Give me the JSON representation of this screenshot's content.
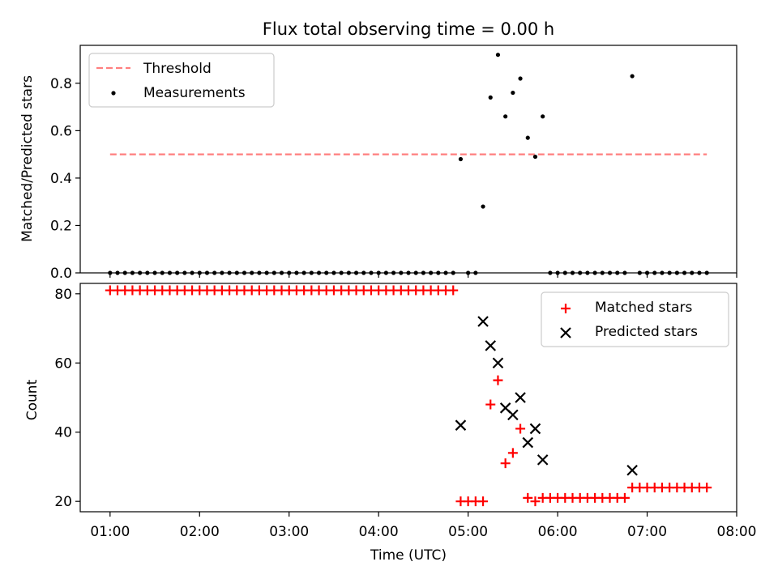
{
  "figure": {
    "title": "Flux total observing time = 0.00 h"
  },
  "chart_data": [
    {
      "type": "scatter",
      "title": "Flux total observing time = 0.00 h",
      "ylabel": "Matched/Predicted stars",
      "xlabel": "",
      "xlim": [
        "00:40",
        "08:00"
      ],
      "ylim": [
        0,
        0.96
      ],
      "yticks": [
        0.0,
        0.2,
        0.4,
        0.6,
        0.8
      ],
      "ytick_labels": [
        "0.0",
        "0.2",
        "0.4",
        "0.6",
        "0.8"
      ],
      "legend_position": "top-left",
      "grid": false,
      "threshold": {
        "name": "Threshold",
        "style": "dashed",
        "color": "#ff7f7f",
        "value": 0.5,
        "x_start": "01:00",
        "x_end": "07:40"
      },
      "series": [
        {
          "name": "Measurements",
          "marker": "dot",
          "color": "#000000",
          "x": [
            "01:00",
            "01:05",
            "01:10",
            "01:15",
            "01:20",
            "01:25",
            "01:30",
            "01:35",
            "01:40",
            "01:45",
            "01:50",
            "01:55",
            "02:00",
            "02:05",
            "02:10",
            "02:15",
            "02:20",
            "02:25",
            "02:30",
            "02:35",
            "02:40",
            "02:45",
            "02:50",
            "02:55",
            "03:00",
            "03:05",
            "03:10",
            "03:15",
            "03:20",
            "03:25",
            "03:30",
            "03:35",
            "03:40",
            "03:45",
            "03:50",
            "03:55",
            "04:00",
            "04:05",
            "04:10",
            "04:15",
            "04:20",
            "04:25",
            "04:30",
            "04:35",
            "04:40",
            "04:45",
            "04:50",
            "04:55",
            "05:00",
            "05:05",
            "05:10",
            "05:15",
            "05:20",
            "05:25",
            "05:30",
            "05:35",
            "05:40",
            "05:45",
            "05:50",
            "05:55",
            "06:00",
            "06:05",
            "06:10",
            "06:15",
            "06:20",
            "06:25",
            "06:30",
            "06:35",
            "06:40",
            "06:45",
            "06:50",
            "06:55",
            "07:00",
            "07:05",
            "07:10",
            "07:15",
            "07:20",
            "07:25",
            "07:30",
            "07:35",
            "07:40"
          ],
          "y": [
            0,
            0,
            0,
            0,
            0,
            0,
            0,
            0,
            0,
            0,
            0,
            0,
            0,
            0,
            0,
            0,
            0,
            0,
            0,
            0,
            0,
            0,
            0,
            0,
            0,
            0,
            0,
            0,
            0,
            0,
            0,
            0,
            0,
            0,
            0,
            0,
            0,
            0,
            0,
            0,
            0,
            0,
            0,
            0,
            0,
            0,
            0,
            0.48,
            0,
            0,
            0.28,
            0.74,
            0.92,
            0.66,
            0.76,
            0.82,
            0.57,
            0.49,
            0.66,
            0,
            0,
            0,
            0,
            0,
            0,
            0,
            0,
            0,
            0,
            0,
            0.83,
            0,
            0,
            0,
            0,
            0,
            0,
            0,
            0,
            0,
            0
          ]
        }
      ],
      "xticks": [
        "01:00",
        "02:00",
        "03:00",
        "04:00",
        "05:00",
        "06:00",
        "07:00",
        "08:00"
      ]
    },
    {
      "type": "scatter",
      "title": "",
      "ylabel": "Count",
      "xlabel": "Time (UTC)",
      "xlim": [
        "00:40",
        "08:00"
      ],
      "ylim": [
        17,
        83
      ],
      "yticks": [
        20,
        40,
        60,
        80
      ],
      "ytick_labels": [
        "20",
        "40",
        "60",
        "80"
      ],
      "xticks": [
        "01:00",
        "02:00",
        "03:00",
        "04:00",
        "05:00",
        "06:00",
        "07:00",
        "08:00"
      ],
      "xtick_labels": [
        "01:00",
        "02:00",
        "03:00",
        "04:00",
        "05:00",
        "06:00",
        "07:00",
        "08:00"
      ],
      "legend_position": "top-right",
      "grid": false,
      "series": [
        {
          "name": "Matched stars",
          "marker": "plus",
          "color": "#ff0000",
          "x": [
            "01:00",
            "01:05",
            "01:10",
            "01:15",
            "01:20",
            "01:25",
            "01:30",
            "01:35",
            "01:40",
            "01:45",
            "01:50",
            "01:55",
            "02:00",
            "02:05",
            "02:10",
            "02:15",
            "02:20",
            "02:25",
            "02:30",
            "02:35",
            "02:40",
            "02:45",
            "02:50",
            "02:55",
            "03:00",
            "03:05",
            "03:10",
            "03:15",
            "03:20",
            "03:25",
            "03:30",
            "03:35",
            "03:40",
            "03:45",
            "03:50",
            "03:55",
            "04:00",
            "04:05",
            "04:10",
            "04:15",
            "04:20",
            "04:25",
            "04:30",
            "04:35",
            "04:40",
            "04:45",
            "04:50",
            "04:55",
            "05:00",
            "05:05",
            "05:10",
            "05:15",
            "05:20",
            "05:25",
            "05:30",
            "05:35",
            "05:40",
            "05:45",
            "05:50",
            "05:55",
            "06:00",
            "06:05",
            "06:10",
            "06:15",
            "06:20",
            "06:25",
            "06:30",
            "06:35",
            "06:40",
            "06:45",
            "06:50",
            "06:55",
            "07:00",
            "07:05",
            "07:10",
            "07:15",
            "07:20",
            "07:25",
            "07:30",
            "07:35",
            "07:40"
          ],
          "y": [
            81,
            81,
            81,
            81,
            81,
            81,
            81,
            81,
            81,
            81,
            81,
            81,
            81,
            81,
            81,
            81,
            81,
            81,
            81,
            81,
            81,
            81,
            81,
            81,
            81,
            81,
            81,
            81,
            81,
            81,
            81,
            81,
            81,
            81,
            81,
            81,
            81,
            81,
            81,
            81,
            81,
            81,
            81,
            81,
            81,
            81,
            81,
            20,
            20,
            20,
            20,
            48,
            55,
            31,
            34,
            41,
            21,
            20,
            21,
            21,
            21,
            21,
            21,
            21,
            21,
            21,
            21,
            21,
            21,
            21,
            24,
            24,
            24,
            24,
            24,
            24,
            24,
            24,
            24,
            24,
            24
          ]
        },
        {
          "name": "Predicted stars",
          "marker": "x",
          "color": "#000000",
          "x": [
            "04:55",
            "05:10",
            "05:15",
            "05:20",
            "05:25",
            "05:30",
            "05:35",
            "05:40",
            "05:45",
            "05:50",
            "06:50"
          ],
          "y": [
            42,
            72,
            65,
            60,
            47,
            45,
            50,
            37,
            41,
            32,
            29
          ]
        }
      ]
    }
  ]
}
